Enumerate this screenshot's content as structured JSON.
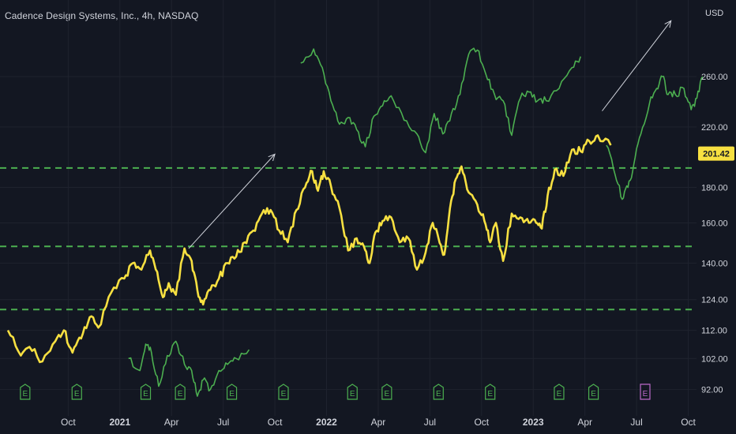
{
  "title": "Cadence Design Systems, Inc., 4h, NASDAQ",
  "chart_data": {
    "type": "line",
    "currency": "USD",
    "last_price": "201.42",
    "y_scale": "log",
    "y_ticks": [
      {
        "v": 92,
        "label": "92.00"
      },
      {
        "v": 102,
        "label": "102.00"
      },
      {
        "v": 112,
        "label": "112.00"
      },
      {
        "v": 124,
        "label": "124.00"
      },
      {
        "v": 140,
        "label": "140.00"
      },
      {
        "v": 160,
        "label": "160.00"
      },
      {
        "v": 180,
        "label": "180.00"
      },
      {
        "v": 220,
        "label": "220.00"
      },
      {
        "v": 260,
        "label": "260.00"
      }
    ],
    "x_ticks": [
      {
        "t": 2020.75,
        "label": "Oct",
        "bold": false
      },
      {
        "t": 2021.0,
        "label": "2021",
        "bold": true
      },
      {
        "t": 2021.25,
        "label": "Apr",
        "bold": false
      },
      {
        "t": 2021.5,
        "label": "Jul",
        "bold": false
      },
      {
        "t": 2021.75,
        "label": "Oct",
        "bold": false
      },
      {
        "t": 2022.0,
        "label": "2022",
        "bold": true
      },
      {
        "t": 2022.25,
        "label": "Apr",
        "bold": false
      },
      {
        "t": 2022.5,
        "label": "Jul",
        "bold": false
      },
      {
        "t": 2022.75,
        "label": "Oct",
        "bold": false
      },
      {
        "t": 2023.0,
        "label": "2023",
        "bold": true
      },
      {
        "t": 2023.25,
        "label": "Apr",
        "bold": false
      },
      {
        "t": 2023.5,
        "label": "Jul",
        "bold": false
      },
      {
        "t": 2023.75,
        "label": "Oct",
        "bold": false
      }
    ],
    "x_range": [
      "2020-06",
      "2023-10"
    ],
    "y_range": [
      87,
      310
    ],
    "horizontal_levels": [
      192,
      148,
      120
    ],
    "series": [
      {
        "role": "main",
        "color": "#f7e041",
        "points": [
          [
            "2020-06",
            112
          ],
          [
            "2020-07",
            103
          ],
          [
            "2020-07",
            106
          ],
          [
            "2020-08",
            101
          ],
          [
            "2020-09",
            108
          ],
          [
            "2020-09",
            112
          ],
          [
            "2020-10",
            104
          ],
          [
            "2020-10",
            109
          ],
          [
            "2020-11",
            117
          ],
          [
            "2020-11",
            113
          ],
          [
            "2020-12",
            127
          ],
          [
            "2021-01",
            133
          ],
          [
            "2021-01",
            140
          ],
          [
            "2021-02",
            137
          ],
          [
            "2021-02",
            146
          ],
          [
            "2021-03",
            136
          ],
          [
            "2021-03",
            125
          ],
          [
            "2021-03",
            131
          ],
          [
            "2021-04",
            126
          ],
          [
            "2021-04",
            147
          ],
          [
            "2021-05",
            141
          ],
          [
            "2021-05",
            128
          ],
          [
            "2021-05",
            122
          ],
          [
            "2021-06",
            128
          ],
          [
            "2021-06",
            133
          ],
          [
            "2021-07",
            140
          ],
          [
            "2021-07",
            143
          ],
          [
            "2021-08",
            150
          ],
          [
            "2021-08",
            156
          ],
          [
            "2021-09",
            165
          ],
          [
            "2021-09",
            167
          ],
          [
            "2021-10",
            156
          ],
          [
            "2021-10",
            150
          ],
          [
            "2021-11",
            167
          ],
          [
            "2021-11",
            180
          ],
          [
            "2021-12",
            190
          ],
          [
            "2021-12",
            178
          ],
          [
            "2021-12",
            190
          ],
          [
            "2022-01",
            181
          ],
          [
            "2022-01",
            168
          ],
          [
            "2022-02",
            146
          ],
          [
            "2022-02",
            152
          ],
          [
            "2022-03",
            148
          ],
          [
            "2022-03",
            140
          ],
          [
            "2022-03",
            155
          ],
          [
            "2022-04",
            161
          ],
          [
            "2022-04",
            163
          ],
          [
            "2022-05",
            150
          ],
          [
            "2022-05",
            152
          ],
          [
            "2022-06",
            137
          ],
          [
            "2022-06",
            145
          ],
          [
            "2022-07",
            160
          ],
          [
            "2022-07",
            152
          ],
          [
            "2022-07",
            144
          ],
          [
            "2022-08",
            168
          ],
          [
            "2022-08",
            185
          ],
          [
            "2022-08",
            193
          ],
          [
            "2022-09",
            177
          ],
          [
            "2022-09",
            170
          ],
          [
            "2022-10",
            161
          ],
          [
            "2022-10",
            150
          ],
          [
            "2022-10",
            160
          ],
          [
            "2022-11",
            141
          ],
          [
            "2022-11",
            165
          ],
          [
            "2022-12",
            163
          ],
          [
            "2022-12",
            160
          ],
          [
            "2023-01",
            160
          ],
          [
            "2023-01",
            157
          ],
          [
            "2023-01",
            175
          ],
          [
            "2023-02",
            191
          ],
          [
            "2023-02",
            187
          ],
          [
            "2023-03",
            204
          ],
          [
            "2023-03",
            203
          ],
          [
            "2023-04",
            210
          ],
          [
            "2023-04",
            214
          ],
          [
            "2023-05",
            207
          ]
        ]
      },
      {
        "role": "continuation",
        "color": "#4caf50",
        "points": [
          [
            "2023-05",
            207
          ],
          [
            "2023-05",
            188
          ],
          [
            "2023-06",
            173
          ],
          [
            "2023-06",
            180
          ],
          [
            "2023-06",
            194
          ],
          [
            "2023-07",
            215
          ],
          [
            "2023-07",
            238
          ],
          [
            "2023-08",
            250
          ],
          [
            "2023-08",
            260
          ],
          [
            "2023-08",
            245
          ],
          [
            "2023-09",
            245
          ],
          [
            "2023-09",
            250
          ],
          [
            "2023-10",
            233
          ],
          [
            "2023-10",
            242
          ],
          [
            "2023-10",
            260
          ]
        ]
      },
      {
        "role": "overlay-projection",
        "color": "#4caf50",
        "points": [
          [
            "2021-11",
            272
          ],
          [
            "2021-12",
            285
          ],
          [
            "2021-12",
            268
          ],
          [
            "2022-01",
            240
          ],
          [
            "2022-01",
            222
          ],
          [
            "2022-02",
            227
          ],
          [
            "2022-02",
            218
          ],
          [
            "2022-03",
            206
          ],
          [
            "2022-03",
            228
          ],
          [
            "2022-04",
            236
          ],
          [
            "2022-04",
            244
          ],
          [
            "2022-05",
            225
          ],
          [
            "2022-06",
            215
          ],
          [
            "2022-06",
            202
          ],
          [
            "2022-07",
            230
          ],
          [
            "2022-07",
            215
          ],
          [
            "2022-08",
            230
          ],
          [
            "2022-08",
            245
          ],
          [
            "2022-09",
            280
          ],
          [
            "2022-09",
            284
          ],
          [
            "2022-10",
            262
          ],
          [
            "2022-10",
            245
          ],
          [
            "2022-11",
            240
          ],
          [
            "2022-11",
            214
          ],
          [
            "2022-12",
            242
          ],
          [
            "2022-12",
            247
          ],
          [
            "2023-01",
            240
          ],
          [
            "2023-01",
            240
          ],
          [
            "2023-02",
            250
          ],
          [
            "2023-03",
            268
          ],
          [
            "2023-03",
            278
          ]
        ]
      },
      {
        "role": "overlay-history",
        "color": "#4caf50",
        "points": [
          [
            "2021-01",
            102
          ],
          [
            "2021-02",
            98
          ],
          [
            "2021-02",
            107
          ],
          [
            "2021-02",
            104
          ],
          [
            "2021-03",
            93
          ],
          [
            "2021-03",
            103
          ],
          [
            "2021-04",
            108
          ],
          [
            "2021-04",
            100
          ],
          [
            "2021-05",
            98
          ],
          [
            "2021-05",
            90
          ],
          [
            "2021-05",
            95
          ],
          [
            "2021-06",
            92
          ],
          [
            "2021-06",
            98
          ],
          [
            "2021-07",
            100
          ],
          [
            "2021-07",
            102
          ],
          [
            "2021-08",
            105
          ]
        ]
      }
    ],
    "trend_arrows": [
      {
        "from": [
          "2021-05",
          147
        ],
        "to": [
          "2021-10",
          201
        ]
      },
      {
        "from": [
          "2023-05",
          232
        ],
        "to": [
          "2023-09",
          313
        ]
      }
    ],
    "earnings_markers": [
      {
        "t": "2020-07",
        "label": "E"
      },
      {
        "t": "2020-10",
        "label": "E"
      },
      {
        "t": "2021-02",
        "label": "E"
      },
      {
        "t": "2021-04",
        "label": "E"
      },
      {
        "t": "2021-07",
        "label": "E"
      },
      {
        "t": "2021-10",
        "label": "E"
      },
      {
        "t": "2022-02",
        "label": "E"
      },
      {
        "t": "2022-04",
        "label": "E"
      },
      {
        "t": "2022-07",
        "label": "E"
      },
      {
        "t": "2022-10",
        "label": "E"
      },
      {
        "t": "2023-02",
        "label": "E"
      },
      {
        "t": "2023-04",
        "label": "E"
      },
      {
        "t": "2023-07",
        "label": "E",
        "highlight": true
      }
    ],
    "colors": {
      "background": "#131722",
      "grid": "#1f232e",
      "level": "#4caf50",
      "arrow": "#d1d4dc",
      "price_tag_bg": "#f7e041",
      "price_tag_text": "#131722",
      "marker": "#4caf50",
      "marker_highlight": "#ba68c8"
    }
  }
}
